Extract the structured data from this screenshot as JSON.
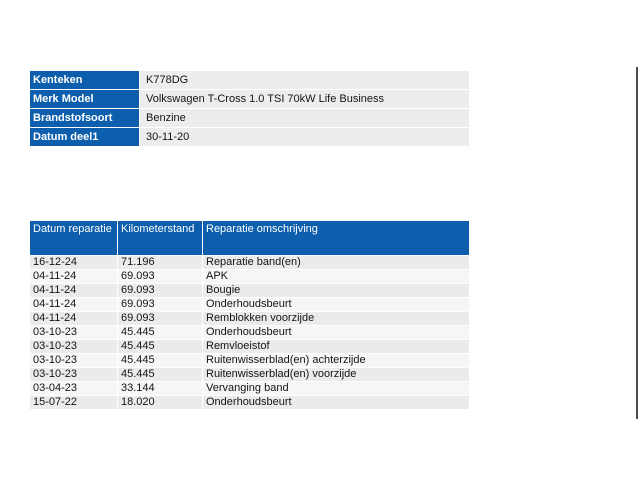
{
  "colors": {
    "header_blue": "#0d5fad",
    "row_gray": "#ebebed",
    "row_light": "#f6f6f8",
    "frame_line": "#4b4b4b"
  },
  "vehicle_info": {
    "rows": [
      {
        "label": "Kenteken",
        "value": "K778DG"
      },
      {
        "label": "Merk Model",
        "value": "Volkswagen T-Cross 1.0 TSI 70kW Life Business"
      },
      {
        "label": "Brandstofsoort",
        "value": "Benzine"
      },
      {
        "label": "Datum deel1",
        "value": "30-11-20"
      }
    ]
  },
  "repair_history": {
    "columns": [
      "Datum reparatie",
      "Kilometerstand",
      "Reparatie omschrijving"
    ],
    "rows": [
      [
        "16-12-24",
        "71.196",
        "Reparatie band(en)"
      ],
      [
        "04-11-24",
        "69.093",
        "APK"
      ],
      [
        "04-11-24",
        "69.093",
        "Bougie"
      ],
      [
        "04-11-24",
        "69.093",
        "Onderhoudsbeurt"
      ],
      [
        "04-11-24",
        "69.093",
        "Remblokken voorzijde"
      ],
      [
        "03-10-23",
        "45.445",
        "Onderhoudsbeurt"
      ],
      [
        "03-10-23",
        "45.445",
        "Remvloeistof"
      ],
      [
        "03-10-23",
        "45.445",
        "Ruitenwisserblad(en) achterzijde"
      ],
      [
        "03-10-23",
        "45.445",
        "Ruitenwisserblad(en) voorzijde"
      ],
      [
        "03-04-23",
        "33.144",
        "Vervanging band"
      ],
      [
        "15-07-22",
        "18.020",
        "Onderhoudsbeurt"
      ]
    ]
  }
}
